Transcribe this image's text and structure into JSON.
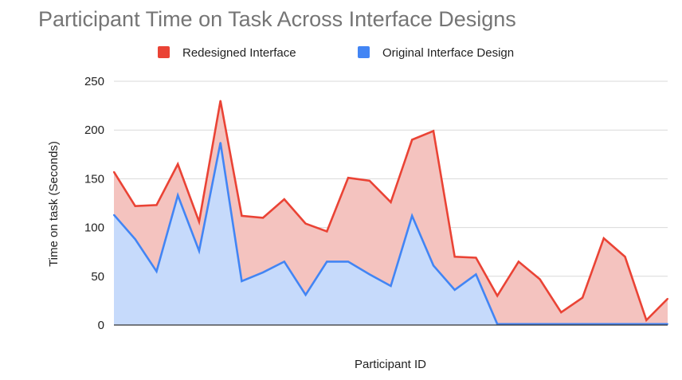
{
  "chart_data": {
    "type": "area",
    "title": "Participant Time on Task Across Interface Designs",
    "xlabel": "Participant ID",
    "ylabel": "Time on task (Seconds)",
    "ylim": [
      0,
      250
    ],
    "yticks": [
      "0",
      "50",
      "100",
      "150",
      "200",
      "250"
    ],
    "grid": true,
    "legend_position": "top",
    "series": [
      {
        "name": "Redesigned Interface",
        "color": "#ea4335",
        "fill": "#f4c3bf",
        "values": [
          157,
          122,
          123,
          165,
          106,
          230,
          112,
          110,
          129,
          104,
          96,
          151,
          148,
          126,
          190,
          199,
          70,
          69,
          30,
          65,
          47,
          13,
          28,
          89,
          70,
          5,
          27
        ]
      },
      {
        "name": "Original Interface Design",
        "color": "#4285f4",
        "fill": "#c6dafb",
        "values": [
          113,
          88,
          55,
          133,
          76,
          187,
          45,
          54,
          65,
          31,
          65,
          65,
          52,
          40,
          112,
          61,
          36,
          52,
          1,
          1,
          1,
          1,
          1,
          1,
          1,
          1,
          1
        ]
      }
    ]
  }
}
